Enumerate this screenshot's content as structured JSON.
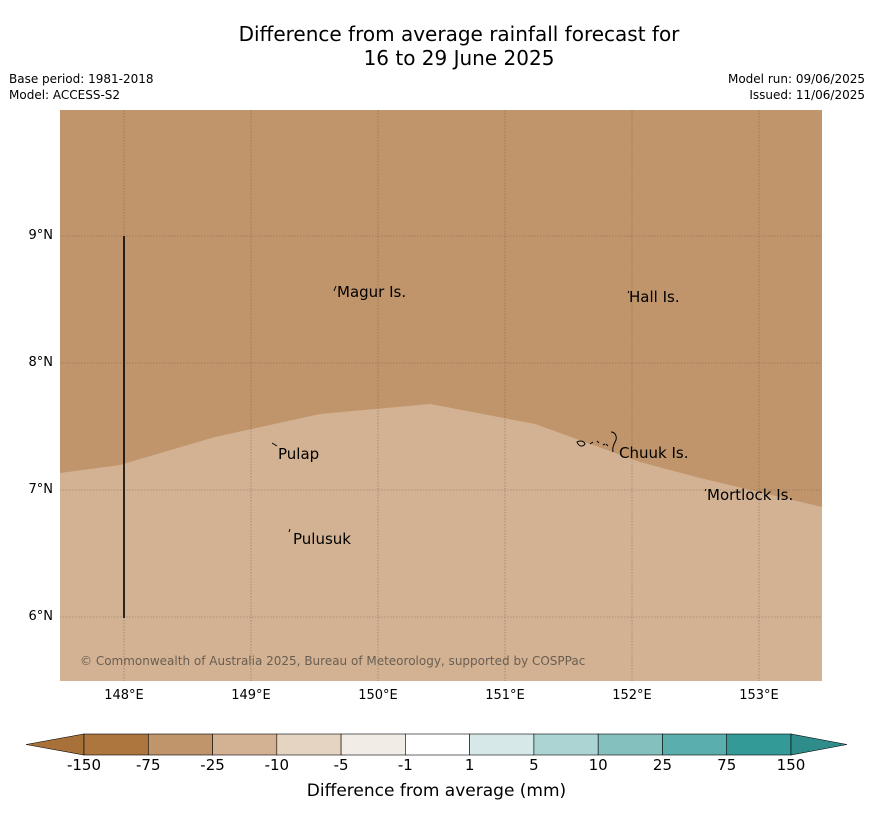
{
  "title": {
    "line1": "Difference from average rainfall forecast for",
    "line2": "16 to 29 June 2025"
  },
  "meta": {
    "base_period": "Base period: 1981-2018",
    "model": "Model: ACCESS-S2",
    "model_run": "Model run: 09/06/2025",
    "issued": "Issued: 11/06/2025"
  },
  "map": {
    "latitude_labels": [
      "9°N",
      "8°N",
      "7°N",
      "6°N"
    ],
    "longitude_labels": [
      "148°E",
      "149°E",
      "150°E",
      "151°E",
      "152°E",
      "153°E"
    ],
    "places": [
      "Magur Is.",
      "Hall Is.",
      "Pulap",
      "Chuuk Is.",
      "Mortlock Is.",
      "Pulusuk"
    ],
    "copyright": "© Commonwealth of Australia 2025, Bureau of Meteorology, supported by COSPPac",
    "colors": {
      "dry_minus25_to_minus75": "#c0956b",
      "dry_minus10_to_minus25": "#d3b293",
      "gridline": "#6b5a48"
    }
  },
  "colorbar": {
    "ticks": [
      "-150",
      "-75",
      "-25",
      "-10",
      "-5",
      "-1",
      "1",
      "5",
      "10",
      "25",
      "75",
      "150"
    ],
    "colors": [
      "#a8713a",
      "#ad763f",
      "#c0956b",
      "#d3b293",
      "#e6d4c2",
      "#f1ece6",
      "#ffffff",
      "#d6e9e8",
      "#acd4d3",
      "#83c0be",
      "#5aaeac",
      "#349a98",
      "#2e8c8a"
    ],
    "label": "Difference from average (mm)"
  }
}
